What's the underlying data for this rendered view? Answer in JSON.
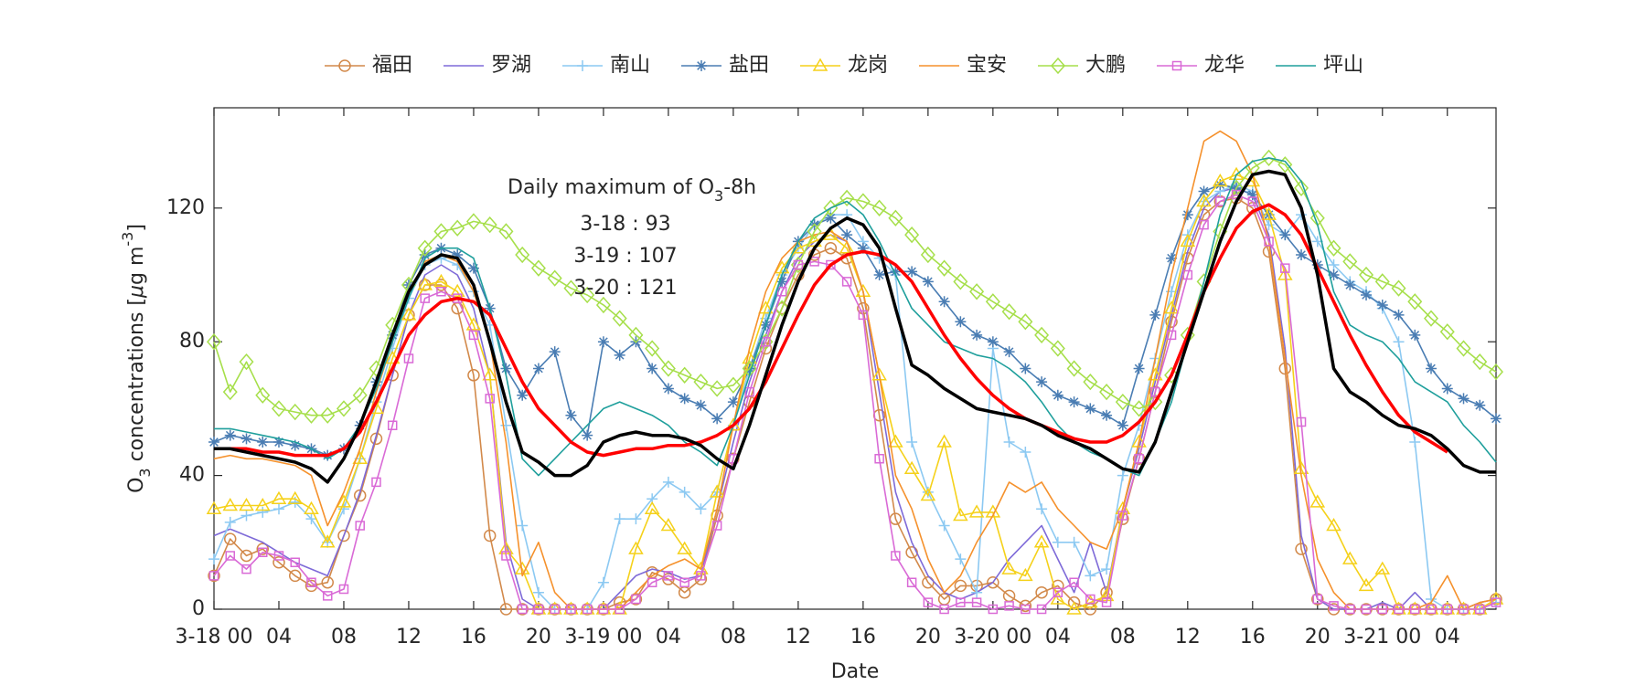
{
  "chart_data": {
    "type": "line",
    "x_label": "Date",
    "y_label": [
      {
        "text": "O"
      },
      {
        "text": "3",
        "style": "sub"
      },
      {
        "text": " concentrations ["
      },
      {
        "text": "μ",
        "style": "italic"
      },
      {
        "text": "g m"
      },
      {
        "text": "-3",
        "style": "sup"
      },
      {
        "text": "]"
      }
    ],
    "annotation": {
      "title": [
        {
          "text": "Daily maximum of O"
        },
        {
          "text": "3",
          "style": "sub"
        },
        {
          "text": "-8h"
        }
      ],
      "lines": [
        "3-18 : 93",
        "3-19 : 107",
        "3-20 : 121"
      ]
    },
    "x": [
      0,
      1,
      2,
      3,
      4,
      5,
      6,
      7,
      8,
      9,
      10,
      11,
      12,
      13,
      14,
      15,
      16,
      17,
      18,
      19,
      20,
      21,
      22,
      23,
      24,
      25,
      26,
      27,
      28,
      29,
      30,
      31,
      32,
      33,
      34,
      35,
      36,
      37,
      38,
      39,
      40,
      41,
      42,
      43,
      44,
      45,
      46,
      47,
      48,
      49,
      50,
      51,
      52,
      53,
      54,
      55,
      56,
      57,
      58,
      59,
      60,
      61,
      62,
      63,
      64,
      65,
      66,
      67,
      68,
      69,
      70,
      71,
      72,
      73,
      74,
      75,
      76,
      77,
      78,
      79
    ],
    "xlim": [
      0,
      79
    ],
    "xticks": [
      {
        "value": 0,
        "label": "3-18 00"
      },
      {
        "value": 4,
        "label": "04"
      },
      {
        "value": 8,
        "label": "08"
      },
      {
        "value": 12,
        "label": "12"
      },
      {
        "value": 16,
        "label": "16"
      },
      {
        "value": 20,
        "label": "20"
      },
      {
        "value": 24,
        "label": "3-19 00"
      },
      {
        "value": 28,
        "label": "04"
      },
      {
        "value": 32,
        "label": "08"
      },
      {
        "value": 36,
        "label": "12"
      },
      {
        "value": 40,
        "label": "16"
      },
      {
        "value": 44,
        "label": "20"
      },
      {
        "value": 48,
        "label": "3-20 00"
      },
      {
        "value": 52,
        "label": "04"
      },
      {
        "value": 56,
        "label": "08"
      },
      {
        "value": 60,
        "label": "12"
      },
      {
        "value": 64,
        "label": "16"
      },
      {
        "value": 68,
        "label": "20"
      },
      {
        "value": 72,
        "label": "3-21 00"
      },
      {
        "value": 76,
        "label": "04"
      }
    ],
    "ylim": [
      0,
      150
    ],
    "yticks": [
      0,
      40,
      80,
      120
    ],
    "legend": "top",
    "series": [
      {
        "name": "福田",
        "color": "#d2894a",
        "marker": "o",
        "values": [
          10,
          21,
          16,
          18,
          14,
          10,
          7,
          8,
          22,
          34,
          51,
          70,
          88,
          97,
          97,
          90,
          70,
          22,
          0,
          0,
          0,
          0,
          0,
          0,
          0,
          2,
          3,
          11,
          9,
          5,
          9,
          28,
          45,
          62,
          78,
          90,
          100,
          106,
          108,
          105,
          90,
          58,
          27,
          17,
          8,
          3,
          7,
          7,
          8,
          4,
          1,
          5,
          7,
          2,
          0,
          5,
          27,
          45,
          65,
          86,
          105,
          118,
          122,
          123,
          120,
          107,
          72,
          18,
          3,
          0,
          0,
          0,
          0,
          0,
          0,
          0,
          0,
          0,
          0,
          3
        ]
      },
      {
        "name": "罗湖",
        "color": "#7e6ad8",
        "values": [
          22,
          24,
          22,
          20,
          17,
          14,
          12,
          10,
          22,
          35,
          52,
          70,
          88,
          100,
          103,
          100,
          90,
          70,
          20,
          3,
          0,
          0,
          0,
          0,
          0,
          5,
          10,
          12,
          11,
          9,
          10,
          30,
          50,
          68,
          82,
          95,
          105,
          110,
          112,
          110,
          95,
          65,
          35,
          20,
          10,
          5,
          3,
          5,
          8,
          15,
          20,
          25,
          15,
          5,
          20,
          5,
          30,
          48,
          68,
          88,
          107,
          120,
          125,
          126,
          124,
          112,
          78,
          22,
          3,
          0,
          0,
          0,
          2,
          0,
          5,
          0,
          0,
          0,
          2,
          3
        ]
      },
      {
        "name": "南山",
        "color": "#8cc9f2",
        "marker": "+",
        "values": [
          15,
          26,
          28,
          29,
          30,
          32,
          27,
          20,
          30,
          45,
          62,
          78,
          93,
          103,
          105,
          103,
          95,
          85,
          55,
          25,
          5,
          0,
          0,
          0,
          8,
          27,
          27,
          33,
          38,
          35,
          30,
          35,
          55,
          72,
          87,
          100,
          108,
          115,
          118,
          118,
          110,
          105,
          100,
          50,
          35,
          25,
          15,
          5,
          78,
          50,
          47,
          30,
          20,
          20,
          10,
          12,
          40,
          55,
          75,
          95,
          112,
          122,
          125,
          127,
          125,
          115,
          112,
          118,
          110,
          103,
          98,
          95,
          90,
          80,
          50,
          3,
          0,
          0,
          0,
          2
        ]
      },
      {
        "name": "盐田",
        "color": "#4a7db3",
        "marker": "*",
        "values": [
          50,
          52,
          51,
          50,
          50,
          49,
          48,
          46,
          48,
          55,
          68,
          82,
          97,
          106,
          108,
          106,
          102,
          90,
          72,
          64,
          72,
          77,
          58,
          52,
          80,
          76,
          80,
          72,
          66,
          63,
          61,
          57,
          62,
          72,
          85,
          98,
          110,
          115,
          117,
          112,
          108,
          100,
          101,
          101,
          98,
          92,
          86,
          82,
          80,
          77,
          72,
          68,
          64,
          62,
          60,
          58,
          55,
          72,
          88,
          105,
          118,
          125,
          127,
          126,
          124,
          118,
          112,
          106,
          103,
          100,
          97,
          94,
          91,
          88,
          82,
          72,
          66,
          63,
          61,
          57
        ]
      },
      {
        "name": "龙岗",
        "color": "#f5d11a",
        "marker": "^",
        "values": [
          30,
          31,
          31,
          31,
          33,
          33,
          30,
          20,
          32,
          45,
          60,
          75,
          88,
          97,
          98,
          95,
          85,
          70,
          18,
          12,
          0,
          0,
          0,
          0,
          0,
          0,
          18,
          30,
          25,
          18,
          12,
          35,
          55,
          75,
          90,
          102,
          108,
          110,
          112,
          108,
          95,
          70,
          50,
          42,
          34,
          50,
          28,
          29,
          29,
          12,
          10,
          20,
          3,
          0,
          2,
          4,
          30,
          50,
          70,
          90,
          110,
          122,
          128,
          130,
          128,
          118,
          100,
          42,
          32,
          25,
          15,
          7,
          12,
          0,
          0,
          0,
          0,
          0,
          0,
          3
        ]
      },
      {
        "name": "宝安",
        "color": "#f5912c",
        "values": [
          45,
          46,
          45,
          45,
          44,
          43,
          40,
          25,
          35,
          48,
          65,
          80,
          95,
          104,
          106,
          104,
          95,
          80,
          50,
          10,
          20,
          5,
          0,
          0,
          0,
          0,
          5,
          10,
          13,
          15,
          12,
          30,
          55,
          78,
          95,
          105,
          110,
          112,
          113,
          110,
          95,
          70,
          40,
          30,
          15,
          5,
          10,
          20,
          28,
          38,
          35,
          38,
          30,
          25,
          20,
          18,
          30,
          50,
          75,
          100,
          120,
          140,
          143,
          140,
          130,
          110,
          75,
          40,
          15,
          5,
          0,
          0,
          0,
          0,
          0,
          2,
          10,
          0,
          2,
          3
        ]
      },
      {
        "name": "大鹏",
        "color": "#a6df4a",
        "marker": "d",
        "values": [
          80,
          65,
          74,
          64,
          60,
          59,
          58,
          58,
          60,
          64,
          72,
          85,
          97,
          108,
          113,
          114,
          116,
          115,
          113,
          106,
          102,
          99,
          96,
          94,
          91,
          87,
          82,
          78,
          72,
          70,
          68,
          66,
          67,
          72,
          80,
          90,
          103,
          113,
          120,
          123,
          122,
          120,
          117,
          112,
          106,
          102,
          98,
          95,
          92,
          89,
          86,
          82,
          78,
          72,
          68,
          65,
          62,
          60,
          62,
          70,
          82,
          98,
          113,
          126,
          132,
          135,
          133,
          126,
          117,
          108,
          104,
          100,
          98,
          96,
          92,
          87,
          83,
          78,
          74,
          71
        ]
      },
      {
        "name": "龙华",
        "color": "#d96ad6",
        "marker": "s",
        "values": [
          10,
          16,
          12,
          17,
          16,
          14,
          8,
          4,
          6,
          25,
          38,
          55,
          75,
          93,
          95,
          93,
          82,
          63,
          16,
          0,
          0,
          0,
          0,
          0,
          0,
          0,
          3,
          8,
          10,
          8,
          10,
          25,
          45,
          65,
          80,
          95,
          103,
          104,
          103,
          98,
          88,
          45,
          16,
          8,
          2,
          0,
          2,
          2,
          0,
          1,
          0,
          0,
          5,
          8,
          3,
          2,
          28,
          45,
          65,
          82,
          100,
          115,
          122,
          124,
          122,
          110,
          102,
          56,
          3,
          1,
          0,
          0,
          0,
          0,
          0,
          0,
          0,
          0,
          0,
          2
        ]
      },
      {
        "name": "坪山",
        "color": "#1f9f9c",
        "values": [
          54,
          54,
          53,
          52,
          51,
          50,
          48,
          45,
          48,
          55,
          66,
          80,
          93,
          105,
          108,
          108,
          105,
          90,
          70,
          45,
          40,
          45,
          50,
          55,
          60,
          62,
          60,
          58,
          55,
          50,
          47,
          43,
          55,
          70,
          85,
          100,
          110,
          117,
          120,
          122,
          118,
          110,
          100,
          90,
          85,
          80,
          78,
          76,
          75,
          72,
          68,
          62,
          55,
          50,
          47,
          45,
          42,
          40,
          50,
          62,
          80,
          98,
          118,
          130,
          134,
          135,
          134,
          128,
          115,
          95,
          85,
          82,
          80,
          75,
          68,
          65,
          62,
          55,
          50,
          44
        ]
      },
      {
        "color": "#ff0000",
        "line_width": 3.5,
        "values": [
          48,
          48,
          48,
          47,
          47,
          46,
          46,
          46,
          48,
          53,
          62,
          72,
          82,
          88,
          92,
          93,
          92,
          88,
          78,
          68,
          60,
          55,
          50,
          47,
          46,
          47,
          48,
          48,
          49,
          49,
          50,
          52,
          55,
          60,
          68,
          78,
          88,
          97,
          103,
          106,
          107,
          106,
          103,
          98,
          90,
          82,
          75,
          69,
          64,
          60,
          57,
          55,
          53,
          51,
          50,
          50,
          52,
          56,
          62,
          70,
          82,
          95,
          105,
          114,
          119,
          121,
          118,
          112,
          102,
          92,
          82,
          73,
          65,
          58,
          53,
          50,
          47,
          null,
          null,
          null
        ]
      },
      {
        "color": "#000000",
        "line_width": 3.5,
        "values": [
          48,
          48,
          47,
          46,
          45,
          44,
          42,
          38,
          45,
          55,
          68,
          82,
          95,
          103,
          106,
          105,
          97,
          80,
          62,
          47,
          44,
          40,
          40,
          43,
          50,
          52,
          53,
          52,
          52,
          51,
          49,
          45,
          42,
          55,
          70,
          85,
          98,
          108,
          114,
          117,
          115,
          108,
          90,
          73,
          70,
          66,
          63,
          60,
          59,
          58,
          57,
          55,
          52,
          50,
          48,
          45,
          42,
          41,
          50,
          65,
          80,
          95,
          110,
          122,
          130,
          131,
          130,
          120,
          100,
          72,
          65,
          62,
          58,
          55,
          54,
          52,
          48,
          43,
          41,
          41
        ]
      }
    ]
  }
}
